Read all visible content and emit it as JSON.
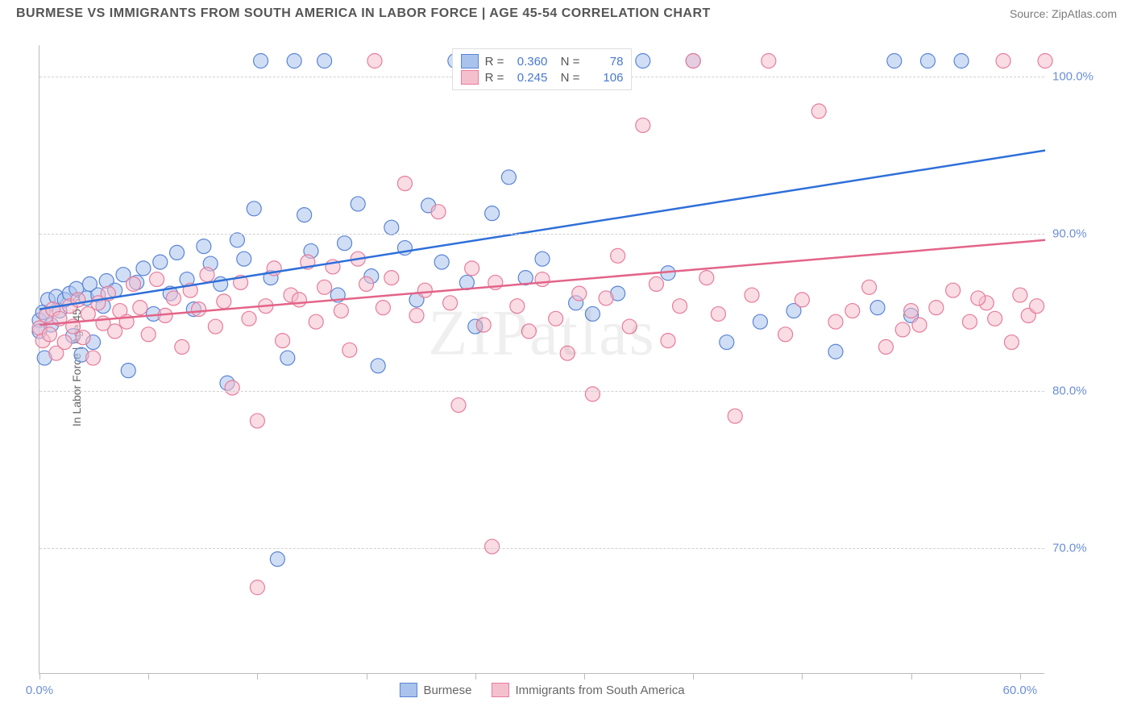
{
  "title": "BURMESE VS IMMIGRANTS FROM SOUTH AMERICA IN LABOR FORCE | AGE 45-54 CORRELATION CHART",
  "source": "Source: ZipAtlas.com",
  "watermark": "ZIPatlas",
  "ylabel": "In Labor Force | Age 45-54",
  "chart": {
    "type": "scatter",
    "xlim": [
      0,
      60
    ],
    "ylim": [
      62,
      102
    ],
    "xticks": [
      0,
      6.5,
      13,
      19.5,
      26,
      32.5,
      39,
      45.5,
      52,
      58.5
    ],
    "xtick_labels": {
      "0": "0.0%",
      "58.5": "60.0%"
    },
    "yticks": [
      70,
      80,
      90,
      100
    ],
    "ytick_labels": [
      "70.0%",
      "80.0%",
      "90.0%",
      "100.0%"
    ],
    "grid_color": "#d0d0d0",
    "background": "#ffffff",
    "series": [
      {
        "name": "Burmese",
        "color_fill": "#a9c3ec",
        "color_stroke": "#5a84d6",
        "line_color": "#2e6fd9",
        "opacity": 0.55,
        "marker_r": 9,
        "R": "0.360",
        "N": "78",
        "trend": {
          "x1": 0,
          "y1": 85.2,
          "x2": 60,
          "y2": 95.3
        },
        "points": [
          [
            0,
            84.5
          ],
          [
            0,
            83.8
          ],
          [
            0.2,
            85
          ],
          [
            0.3,
            82.1
          ],
          [
            0.5,
            85.8
          ],
          [
            0.7,
            84.2
          ],
          [
            1,
            86
          ],
          [
            1.2,
            85.1
          ],
          [
            1.5,
            85.8
          ],
          [
            1.8,
            86.2
          ],
          [
            2,
            83.5
          ],
          [
            2.2,
            86.5
          ],
          [
            2.5,
            82.3
          ],
          [
            2.8,
            85.9
          ],
          [
            3,
            86.8
          ],
          [
            3.2,
            83.1
          ],
          [
            3.5,
            86.1
          ],
          [
            3.8,
            85.4
          ],
          [
            4,
            87
          ],
          [
            4.5,
            86.4
          ],
          [
            5,
            87.4
          ],
          [
            5.3,
            81.3
          ],
          [
            5.8,
            86.9
          ],
          [
            6.2,
            87.8
          ],
          [
            6.8,
            84.9
          ],
          [
            7.2,
            88.2
          ],
          [
            7.8,
            86.2
          ],
          [
            8.2,
            88.8
          ],
          [
            8.8,
            87.1
          ],
          [
            9.2,
            85.2
          ],
          [
            9.8,
            89.2
          ],
          [
            10.2,
            88.1
          ],
          [
            10.8,
            86.8
          ],
          [
            11.2,
            80.5
          ],
          [
            11.8,
            89.6
          ],
          [
            12.2,
            88.4
          ],
          [
            12.8,
            91.6
          ],
          [
            13.2,
            101
          ],
          [
            13.8,
            87.2
          ],
          [
            14.2,
            69.3
          ],
          [
            14.8,
            82.1
          ],
          [
            15.2,
            101
          ],
          [
            15.8,
            91.2
          ],
          [
            16.2,
            88.9
          ],
          [
            17,
            101
          ],
          [
            17.8,
            86.1
          ],
          [
            18.2,
            89.4
          ],
          [
            19,
            91.9
          ],
          [
            19.8,
            87.3
          ],
          [
            20.2,
            81.6
          ],
          [
            21,
            90.4
          ],
          [
            21.8,
            89.1
          ],
          [
            22.5,
            85.8
          ],
          [
            23.2,
            91.8
          ],
          [
            24,
            88.2
          ],
          [
            24.8,
            101
          ],
          [
            25.5,
            86.9
          ],
          [
            26,
            84.1
          ],
          [
            27,
            91.3
          ],
          [
            28,
            93.6
          ],
          [
            29,
            87.2
          ],
          [
            30,
            88.4
          ],
          [
            31,
            101
          ],
          [
            32,
            85.6
          ],
          [
            33,
            84.9
          ],
          [
            34.5,
            86.2
          ],
          [
            36,
            101
          ],
          [
            37.5,
            87.5
          ],
          [
            39,
            101
          ],
          [
            41,
            83.1
          ],
          [
            43,
            84.4
          ],
          [
            45,
            85.1
          ],
          [
            47.5,
            82.5
          ],
          [
            50,
            85.3
          ],
          [
            51,
            101
          ],
          [
            53,
            101
          ],
          [
            52,
            84.8
          ],
          [
            55,
            101
          ]
        ]
      },
      {
        "name": "Immigrants from South America",
        "color_fill": "#f4c0ce",
        "color_stroke": "#e77c9b",
        "line_color": "#e36488",
        "opacity": 0.55,
        "marker_r": 9,
        "R": "0.245",
        "N": "106",
        "trend": {
          "x1": 0,
          "y1": 84.2,
          "x2": 60,
          "y2": 89.6
        },
        "points": [
          [
            0,
            84.0
          ],
          [
            0.2,
            83.2
          ],
          [
            0.4,
            84.8
          ],
          [
            0.6,
            83.6
          ],
          [
            0.8,
            85.2
          ],
          [
            1,
            82.4
          ],
          [
            1.2,
            84.6
          ],
          [
            1.5,
            83.1
          ],
          [
            1.8,
            85.4
          ],
          [
            2,
            84.1
          ],
          [
            2.3,
            85.8
          ],
          [
            2.6,
            83.4
          ],
          [
            2.9,
            84.9
          ],
          [
            3.2,
            82.1
          ],
          [
            3.5,
            85.6
          ],
          [
            3.8,
            84.3
          ],
          [
            4.1,
            86.2
          ],
          [
            4.5,
            83.8
          ],
          [
            4.8,
            85.1
          ],
          [
            5.2,
            84.4
          ],
          [
            5.6,
            86.8
          ],
          [
            6,
            85.3
          ],
          [
            6.5,
            83.6
          ],
          [
            7,
            87.1
          ],
          [
            7.5,
            84.8
          ],
          [
            8,
            85.9
          ],
          [
            8.5,
            82.8
          ],
          [
            9,
            86.4
          ],
          [
            9.5,
            85.2
          ],
          [
            10,
            87.4
          ],
          [
            10.5,
            84.1
          ],
          [
            11,
            85.7
          ],
          [
            11.5,
            80.2
          ],
          [
            12,
            86.9
          ],
          [
            12.5,
            84.6
          ],
          [
            13,
            78.1
          ],
          [
            13,
            67.5
          ],
          [
            13.5,
            85.4
          ],
          [
            14,
            87.8
          ],
          [
            14.5,
            83.2
          ],
          [
            15,
            86.1
          ],
          [
            15.5,
            85.8
          ],
          [
            16,
            88.2
          ],
          [
            16.5,
            84.4
          ],
          [
            17,
            86.6
          ],
          [
            17.5,
            87.9
          ],
          [
            18,
            85.1
          ],
          [
            18.5,
            82.6
          ],
          [
            19,
            88.4
          ],
          [
            19.5,
            86.8
          ],
          [
            20,
            101
          ],
          [
            20.5,
            85.3
          ],
          [
            21,
            87.2
          ],
          [
            21.8,
            93.2
          ],
          [
            22.5,
            84.8
          ],
          [
            23,
            86.4
          ],
          [
            23.8,
            91.4
          ],
          [
            24.5,
            85.6
          ],
          [
            25,
            79.1
          ],
          [
            25.8,
            87.8
          ],
          [
            26.5,
            84.2
          ],
          [
            27,
            70.1
          ],
          [
            27.2,
            86.9
          ],
          [
            28,
            101
          ],
          [
            28.5,
            85.4
          ],
          [
            29.2,
            83.8
          ],
          [
            30,
            87.1
          ],
          [
            30.8,
            84.6
          ],
          [
            31.5,
            82.4
          ],
          [
            32.2,
            86.2
          ],
          [
            33,
            79.8
          ],
          [
            33.8,
            85.9
          ],
          [
            34.5,
            88.6
          ],
          [
            35.2,
            84.1
          ],
          [
            36,
            96.9
          ],
          [
            36.8,
            86.8
          ],
          [
            37.5,
            83.2
          ],
          [
            38.2,
            85.4
          ],
          [
            39,
            101
          ],
          [
            39.8,
            87.2
          ],
          [
            40.5,
            84.9
          ],
          [
            41.5,
            78.4
          ],
          [
            42.5,
            86.1
          ],
          [
            43.5,
            101
          ],
          [
            44.5,
            83.6
          ],
          [
            45.5,
            85.8
          ],
          [
            46.5,
            97.8
          ],
          [
            47.5,
            84.4
          ],
          [
            48.5,
            85.1
          ],
          [
            49.5,
            86.6
          ],
          [
            50.5,
            82.8
          ],
          [
            51.5,
            83.9
          ],
          [
            52,
            85.1
          ],
          [
            52.5,
            84.2
          ],
          [
            53.5,
            85.3
          ],
          [
            54.5,
            86.4
          ],
          [
            55.5,
            84.4
          ],
          [
            56.5,
            85.6
          ],
          [
            57.5,
            101
          ],
          [
            58.5,
            86.1
          ],
          [
            59,
            84.8
          ],
          [
            59.5,
            85.4
          ],
          [
            60,
            101
          ],
          [
            58,
            83.1
          ],
          [
            57,
            84.6
          ],
          [
            56,
            85.9
          ]
        ]
      }
    ]
  },
  "legend_bottom": [
    {
      "label": "Burmese",
      "fill": "#a9c3ec",
      "stroke": "#5a84d6"
    },
    {
      "label": "Immigrants from South America",
      "fill": "#f4c0ce",
      "stroke": "#e77c9b"
    }
  ]
}
